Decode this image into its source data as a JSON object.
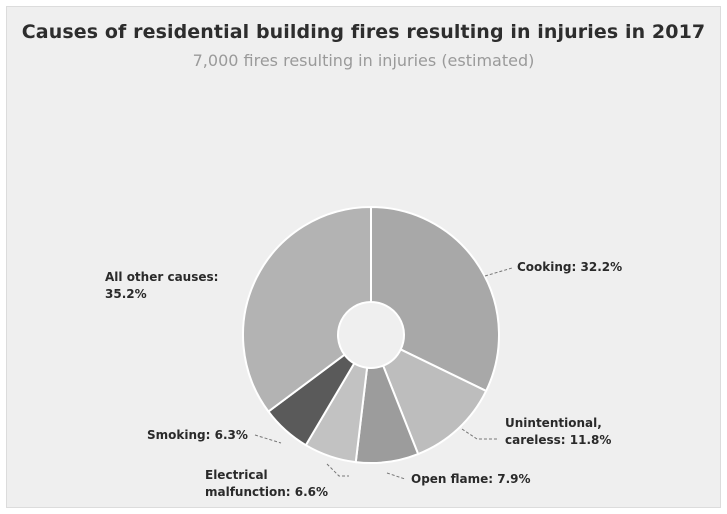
{
  "chart_data": {
    "type": "pie",
    "title": "Causes of residential building fires resulting in injuries in 2017",
    "subtitle": "7,000 fires resulting in injuries (estimated)",
    "slices": [
      {
        "label": "Cooking: 32.2%",
        "value": 32.2,
        "color": "#a8a8a8"
      },
      {
        "label": "Unintentional, careless: 11.8%",
        "value": 11.8,
        "color": "#bdbdbd"
      },
      {
        "label": "Open flame: 7.9%",
        "value": 7.9,
        "color": "#9c9c9c"
      },
      {
        "label": "Electrical malfunction: 6.6%",
        "value": 6.6,
        "color": "#c2c2c2"
      },
      {
        "label": "Smoking: 6.3%",
        "value": 6.3,
        "color": "#5a5a5a"
      },
      {
        "label": "All other causes: 35.2%",
        "value": 35.2,
        "color": "#b3b3b3"
      }
    ]
  }
}
